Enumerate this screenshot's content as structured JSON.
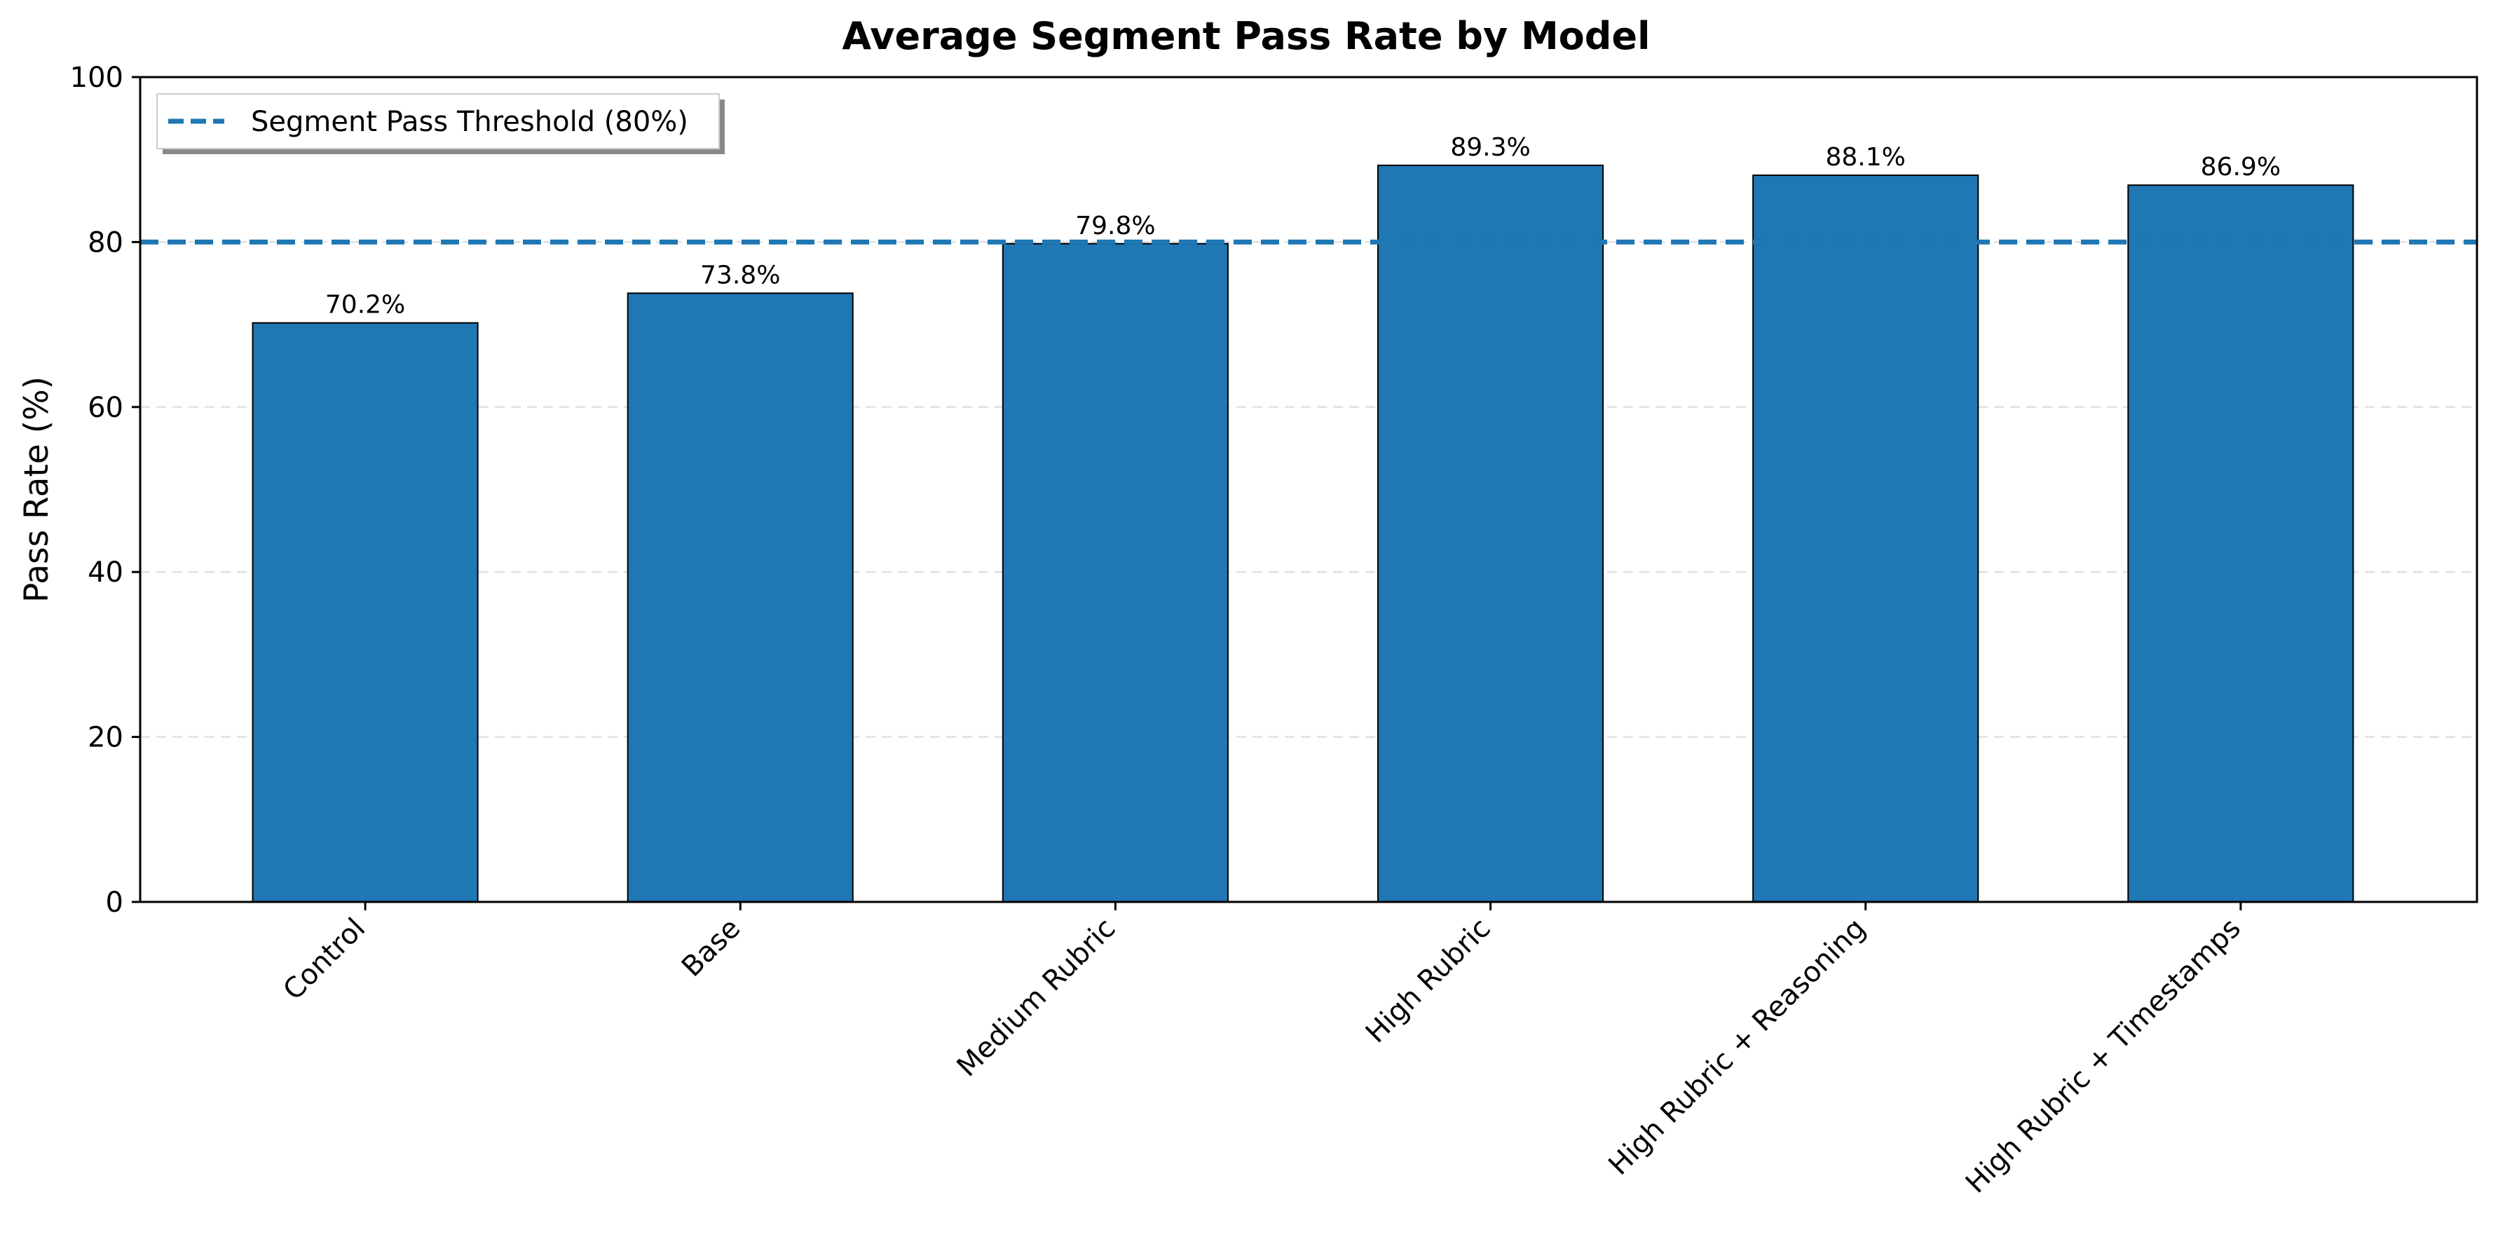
{
  "chart_data": {
    "type": "bar",
    "title": "Average Segment Pass Rate by Model",
    "xlabel": "",
    "ylabel": "Pass Rate (%)",
    "ylim": [
      0,
      100
    ],
    "yticks": [
      0,
      20,
      40,
      60,
      80,
      100
    ],
    "categories": [
      "Control",
      "Base",
      "Medium Rubric",
      "High Rubric",
      "High Rubric + Reasoning",
      "High Rubric + Timestamps"
    ],
    "values": [
      70.2,
      73.8,
      79.8,
      89.3,
      88.1,
      86.9
    ],
    "value_labels": [
      "70.2%",
      "73.8%",
      "79.8%",
      "89.3%",
      "88.1%",
      "86.9%"
    ],
    "threshold": {
      "value": 80,
      "label": "Segment Pass Threshold (80%)",
      "style": "dashed"
    },
    "grid": "horizontal dashed",
    "legend_position": "top-left",
    "colors": {
      "bar": "#1f77b4",
      "bar_edge": "#000000",
      "threshold": "#1f77b4",
      "grid": "#e0e0e0"
    }
  }
}
